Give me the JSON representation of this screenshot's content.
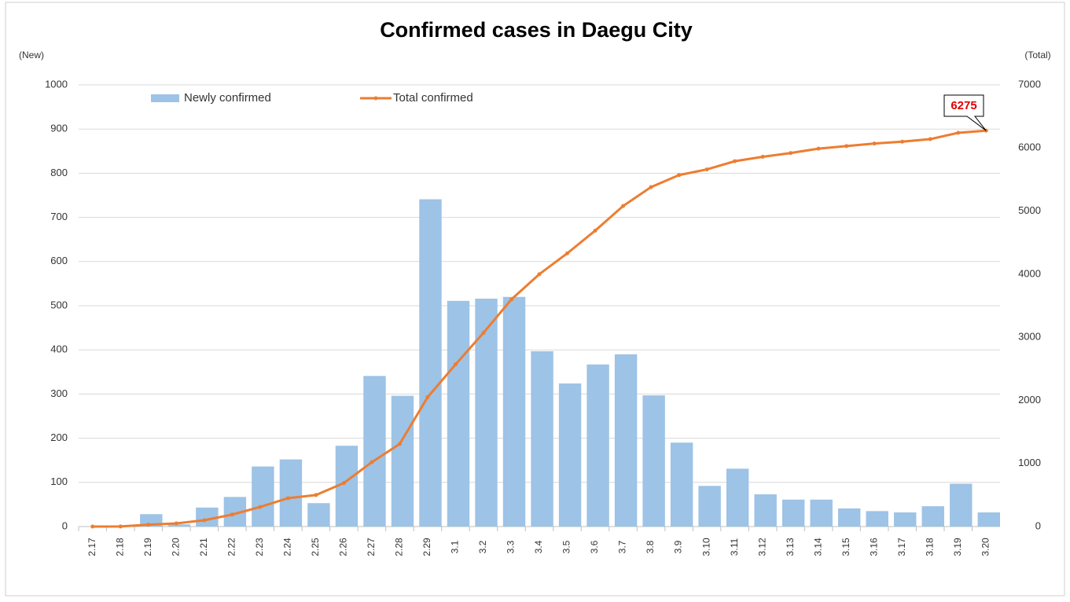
{
  "chart_data": {
    "type": "bar_line",
    "title": "Confirmed cases in Daegu City",
    "y_label": "(New)",
    "y2_label": "(Total)",
    "annotation": "6275",
    "categories": [
      "2.17",
      "2.18",
      "2.19",
      "2.20",
      "2.21",
      "2.22",
      "2.23",
      "2.24",
      "2.25",
      "2.26",
      "2.27",
      "2.28",
      "2.29",
      "3.1",
      "3.2",
      "3.3",
      "3.4",
      "3.5",
      "3.6",
      "3.7",
      "3.8",
      "3.9",
      "3.10",
      "3.11",
      "3.12",
      "3.13",
      "3.14",
      "3.15",
      "3.16",
      "3.17",
      "3.18",
      "3.19",
      "3.20"
    ],
    "series": [
      {
        "name": "Newly confirmed",
        "color": "#9dc3e6",
        "kind": "bar",
        "values": [
          0,
          1,
          28,
          5,
          43,
          67,
          136,
          152,
          53,
          183,
          341,
          296,
          741,
          511,
          516,
          520,
          397,
          324,
          367,
          390,
          297,
          190,
          92,
          131,
          73,
          61,
          61,
          41,
          35,
          32,
          46,
          97,
          32
        ]
      },
      {
        "name": "Total confirmed",
        "color": "#ed7d31",
        "kind": "line",
        "axis": "y2",
        "values": [
          0,
          1,
          30,
          50,
          100,
          190,
          310,
          450,
          500,
          690,
          1020,
          1310,
          2050,
          2570,
          3070,
          3600,
          4000,
          4330,
          4690,
          5080,
          5380,
          5570,
          5660,
          5790,
          5860,
          5920,
          5990,
          6030,
          6070,
          6100,
          6140,
          6240,
          6275
        ]
      }
    ],
    "ylim": [
      0,
      1000
    ],
    "yticks": [
      0,
      100,
      200,
      300,
      400,
      500,
      600,
      700,
      800,
      900,
      1000
    ],
    "y2lim": [
      0,
      7000
    ],
    "y2ticks": [
      0,
      1000,
      2000,
      3000,
      4000,
      5000,
      6000,
      7000
    ],
    "grid": true
  }
}
